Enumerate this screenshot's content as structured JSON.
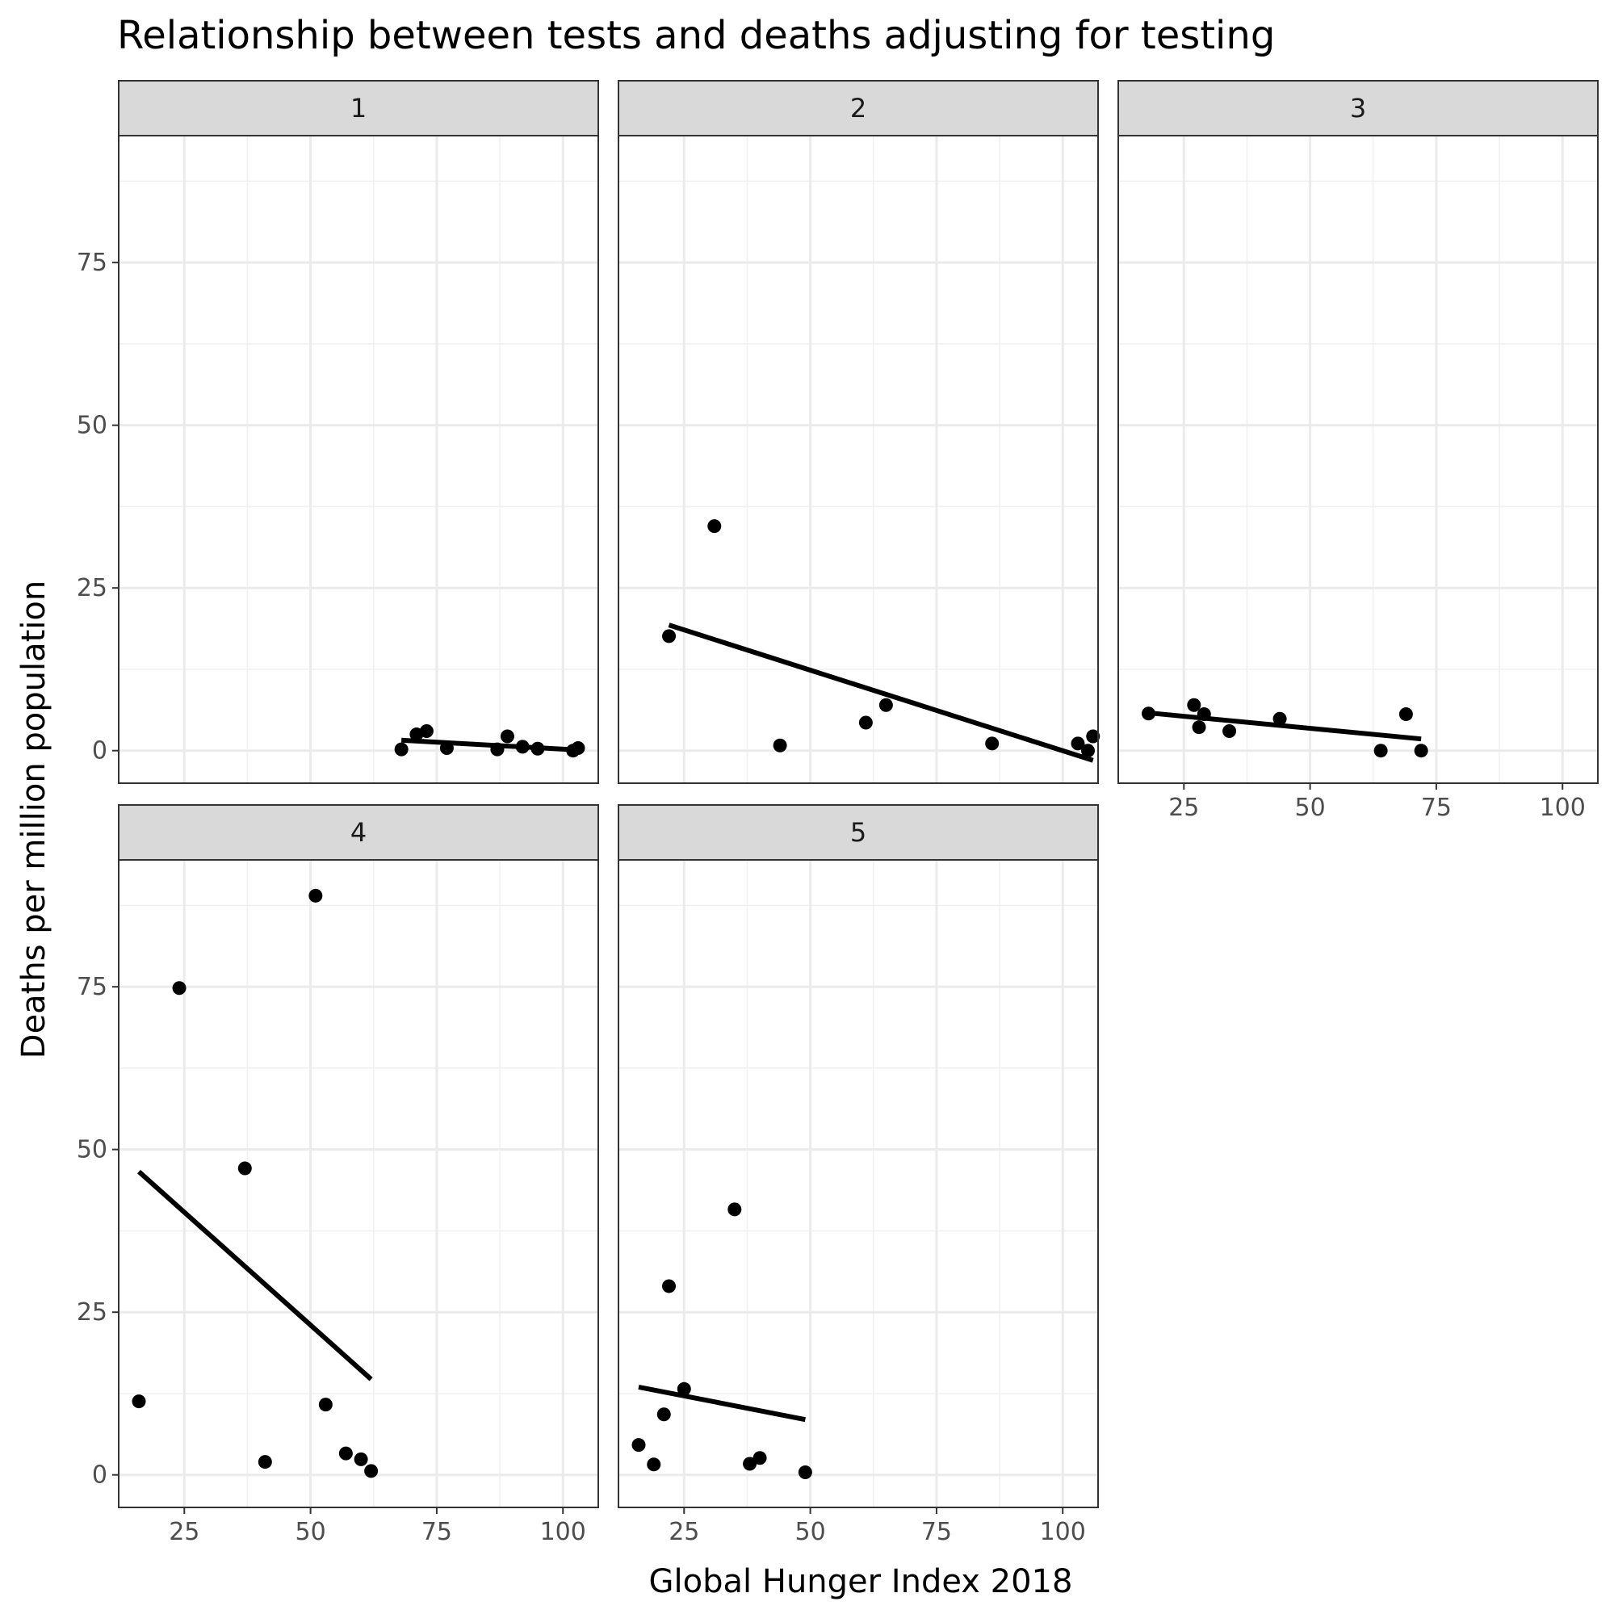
{
  "chart_data": {
    "type": "scatter",
    "title": "Relationship between tests and deaths adjusting for testing",
    "xlabel": "Global Hunger Index 2018",
    "ylabel": "Deaths per million population",
    "xlim": [
      12,
      107
    ],
    "ylim": [
      -5,
      94.5
    ],
    "x_ticks": [
      25,
      50,
      75,
      100
    ],
    "y_ticks": [
      0,
      25,
      50,
      75
    ],
    "x_tick_labels": [
      "25",
      "50",
      "75",
      "100"
    ],
    "y_tick_labels": [
      "0",
      "25",
      "50",
      "75"
    ],
    "grid": true,
    "facets": [
      {
        "label": "1",
        "points": [
          [
            68,
            0.2
          ],
          [
            71,
            2.5
          ],
          [
            73,
            3.0
          ],
          [
            77,
            0.4
          ],
          [
            87,
            0.2
          ],
          [
            89,
            2.2
          ],
          [
            92,
            0.6
          ],
          [
            95,
            0.3
          ],
          [
            102,
            0.0
          ],
          [
            103,
            0.4
          ]
        ],
        "fit": [
          [
            68,
            1.6
          ],
          [
            103,
            0.1
          ]
        ]
      },
      {
        "label": "2",
        "points": [
          [
            22,
            17.6
          ],
          [
            31,
            34.5
          ],
          [
            44,
            0.8
          ],
          [
            61,
            4.3
          ],
          [
            65,
            7.0
          ],
          [
            86,
            1.1
          ],
          [
            103,
            1.1
          ],
          [
            105,
            0.0
          ],
          [
            106,
            2.2
          ]
        ],
        "fit": [
          [
            22,
            19.3
          ],
          [
            106,
            -1.5
          ]
        ]
      },
      {
        "label": "3",
        "points": [
          [
            18,
            5.7
          ],
          [
            27,
            7.0
          ],
          [
            28,
            3.6
          ],
          [
            29,
            5.6
          ],
          [
            34,
            3.0
          ],
          [
            44,
            4.9
          ],
          [
            64,
            0.0
          ],
          [
            69,
            5.6
          ],
          [
            72,
            0.0
          ]
        ],
        "fit": [
          [
            18,
            5.8
          ],
          [
            72,
            1.8
          ]
        ]
      },
      {
        "label": "4",
        "points": [
          [
            16,
            11.3
          ],
          [
            24,
            74.8
          ],
          [
            37,
            47.1
          ],
          [
            41,
            2.0
          ],
          [
            51,
            89.0
          ],
          [
            53,
            10.8
          ],
          [
            57,
            3.3
          ],
          [
            60,
            2.4
          ],
          [
            62,
            0.6
          ]
        ],
        "fit": [
          [
            16,
            46.6
          ],
          [
            62,
            14.7
          ]
        ]
      },
      {
        "label": "5",
        "points": [
          [
            16,
            4.6
          ],
          [
            19,
            1.6
          ],
          [
            21,
            9.3
          ],
          [
            22,
            29.0
          ],
          [
            25,
            13.2
          ],
          [
            35,
            40.8
          ],
          [
            38,
            1.7
          ],
          [
            40,
            2.6
          ],
          [
            49,
            0.4
          ]
        ],
        "fit": [
          [
            16,
            13.5
          ],
          [
            49,
            8.5
          ]
        ]
      }
    ]
  }
}
